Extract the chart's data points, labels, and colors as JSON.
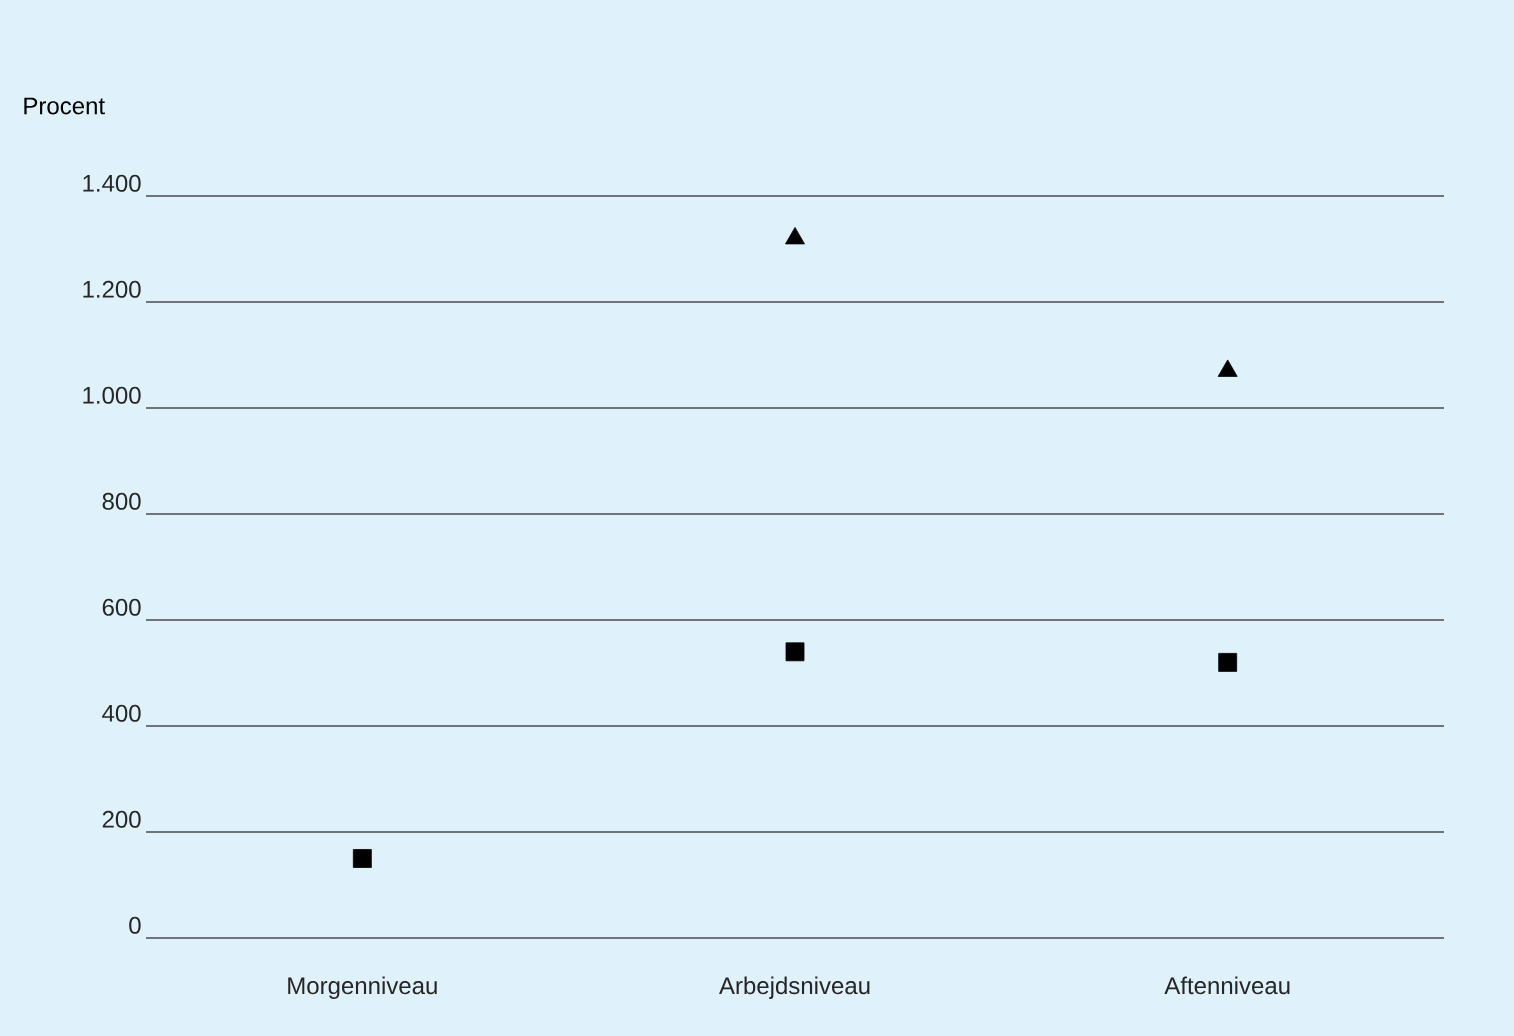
{
  "chart_data": {
    "type": "scatter",
    "ylabel": "Procent",
    "categories": [
      "Morgenniveau",
      "Arbejdsniveau",
      "Aftenniveau"
    ],
    "series": [
      {
        "color": "#000000",
        "marker": "square",
        "values": [
          150,
          540,
          520
        ]
      },
      {
        "color": "#000000",
        "marker": "triangle",
        "values": [
          null,
          1320,
          1070
        ]
      }
    ],
    "ylim": [
      0,
      1400
    ],
    "yticks": [
      0,
      200,
      400,
      600,
      800,
      {
        "value": 1000,
        "label": "1.000"
      },
      {
        "value": 1200,
        "label": "1.200"
      },
      {
        "value": 1400,
        "label": "1.400"
      }
    ],
    "grid": "y"
  }
}
